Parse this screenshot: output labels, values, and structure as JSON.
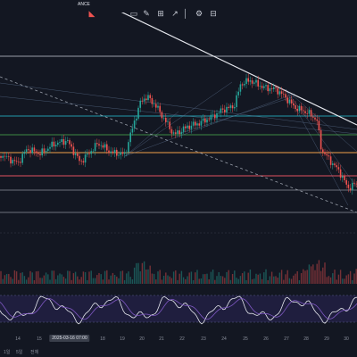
{
  "header": {
    "exchange_suffix": "ANCE",
    "ohlc_text": "",
    "ma_text": ""
  },
  "toolbar": {
    "icons": [
      "alert-icon",
      "chart-type-icon",
      "draw-icon",
      "indicator-icon",
      "compare-icon",
      "layout-icon",
      "settings-icon",
      "fullscreen-icon"
    ]
  },
  "xaxis": {
    "ticks": [
      "14",
      "15",
      "16",
      "18",
      "19",
      "20",
      "21",
      "22",
      "23",
      "24",
      "25",
      "26",
      "27",
      "28",
      "29",
      "30"
    ],
    "highlight": "2025-03-16  07:00"
  },
  "bottombar": {
    "timeframes": [
      "1일",
      "5일",
      "전체"
    ]
  },
  "colors": {
    "bg": "#131722",
    "up": "#26a69a",
    "down": "#ef5350",
    "hline_orange": "#f0a04b",
    "hline_green": "#4caf50",
    "hline_cyan": "#26c6da",
    "hline_red": "#e05260",
    "hline_white": "#c7ccd6"
  }
}
